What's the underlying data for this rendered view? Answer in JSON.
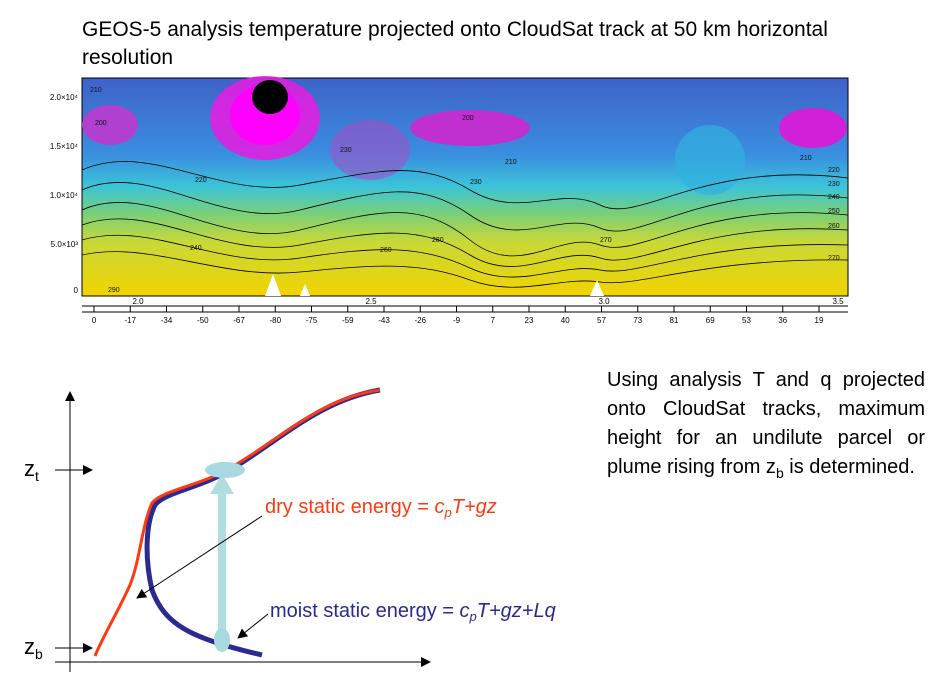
{
  "title": "GEOS-5 analysis temperature projected onto CloudSat track at 50 km horizontal resolution",
  "plot": {
    "y_labels": [
      "2.0×10⁴",
      "1.5×10⁴",
      "1.0×10⁴",
      "5.0×10³",
      "0"
    ],
    "top_labels": [
      "2.0",
      "2.5",
      "3.0",
      "3.5"
    ],
    "bottom_labels": [
      "0",
      "-17",
      "-34",
      "-50",
      "-67",
      "-80",
      "-75",
      "-59",
      "-43",
      "-26",
      "-9",
      "7",
      "23",
      "40",
      "57",
      "73",
      "81",
      "69",
      "53",
      "36",
      "19"
    ],
    "contour_labels": [
      "210",
      "200",
      "220",
      "240",
      "200",
      "210",
      "230",
      "210",
      "220",
      "230",
      "240",
      "250",
      "260",
      "270",
      "280",
      "290",
      "230",
      "260",
      "270"
    ]
  },
  "diagram": {
    "z_top": [
      "z",
      "t"
    ],
    "z_bottom": [
      "z",
      "b"
    ],
    "dry": [
      "dry static energy = ",
      "c",
      "p",
      "T+gz"
    ],
    "moist": [
      "moist static energy = ",
      "c",
      "p",
      "T+gz+Lq"
    ]
  },
  "note": [
    "Using analysis T and q projected onto CloudSat tracks, maximum height for an undilute parcel or plume rising from z",
    "b",
    " is determined."
  ]
}
